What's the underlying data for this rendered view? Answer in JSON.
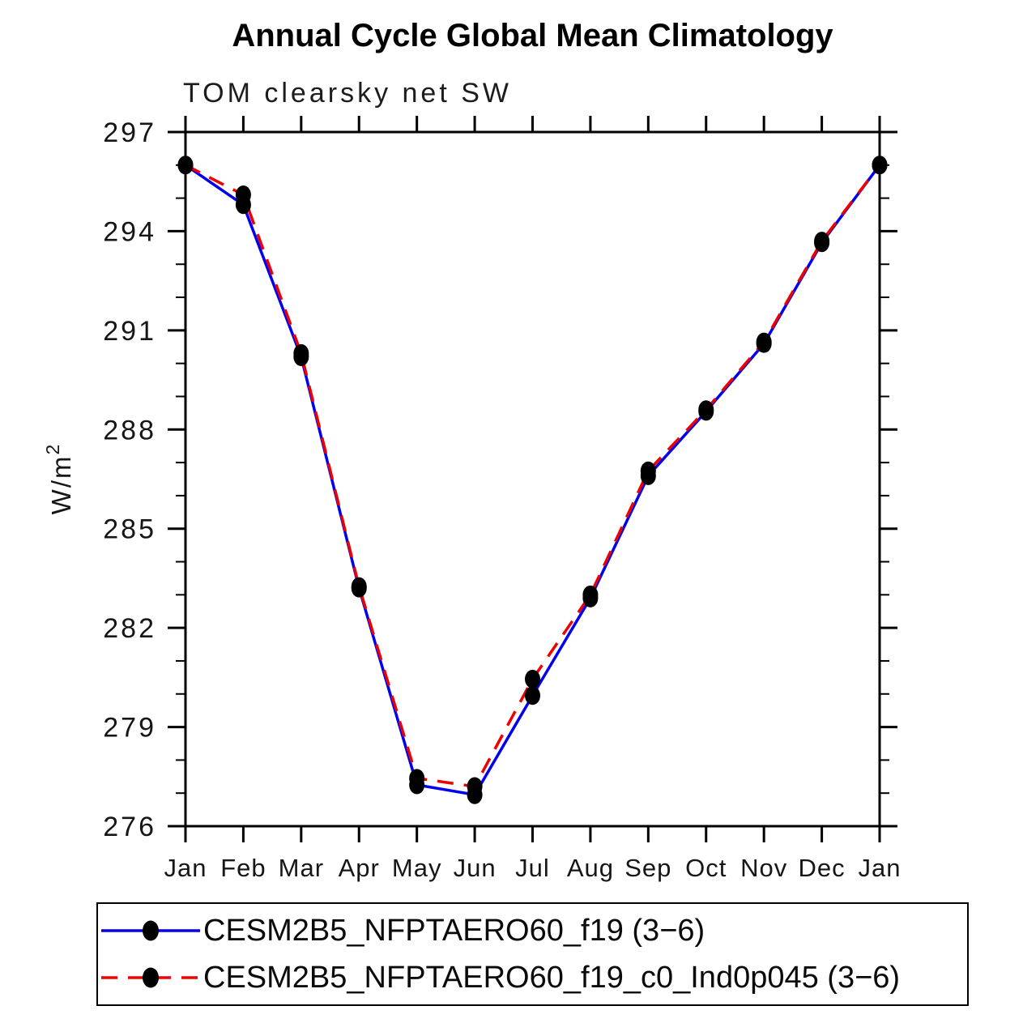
{
  "chart_data": {
    "type": "line",
    "title": "Annual Cycle Global Mean Climatology",
    "subtitle": "TOM clearsky net SW",
    "ylabel": "W/m²",
    "xlabel": "",
    "categories": [
      "Jan",
      "Feb",
      "Mar",
      "Apr",
      "May",
      "Jun",
      "Jul",
      "Aug",
      "Sep",
      "Oct",
      "Nov",
      "Dec",
      "Jan"
    ],
    "ylim": [
      276,
      297
    ],
    "y_major_step": 3,
    "y_minor_step": 1,
    "y_major_ticks": [
      276,
      279,
      282,
      285,
      288,
      291,
      294,
      297
    ],
    "grid": false,
    "legend_position": "bottom-box",
    "marker": "filled-circle",
    "marker_color": "#000000",
    "series": [
      {
        "name": "CESM2B5_NFPTAERO60_f19 (3−6)",
        "color": "#0000ee",
        "line_style": "solid",
        "values": [
          296.0,
          294.8,
          290.2,
          283.2,
          277.25,
          276.95,
          279.95,
          282.9,
          286.6,
          288.55,
          290.6,
          293.65,
          296.0
        ]
      },
      {
        "name": "CESM2B5_NFPTAERO60_f19_c0_Ind0p045 (3−6)",
        "color": "#ee0000",
        "line_style": "dashed",
        "values": [
          296.0,
          295.1,
          290.3,
          283.25,
          277.45,
          277.2,
          280.45,
          283.0,
          286.75,
          288.6,
          290.65,
          293.7,
          296.0
        ]
      }
    ]
  },
  "colors": {
    "axis": "#000000",
    "tick_text": "#161616"
  }
}
